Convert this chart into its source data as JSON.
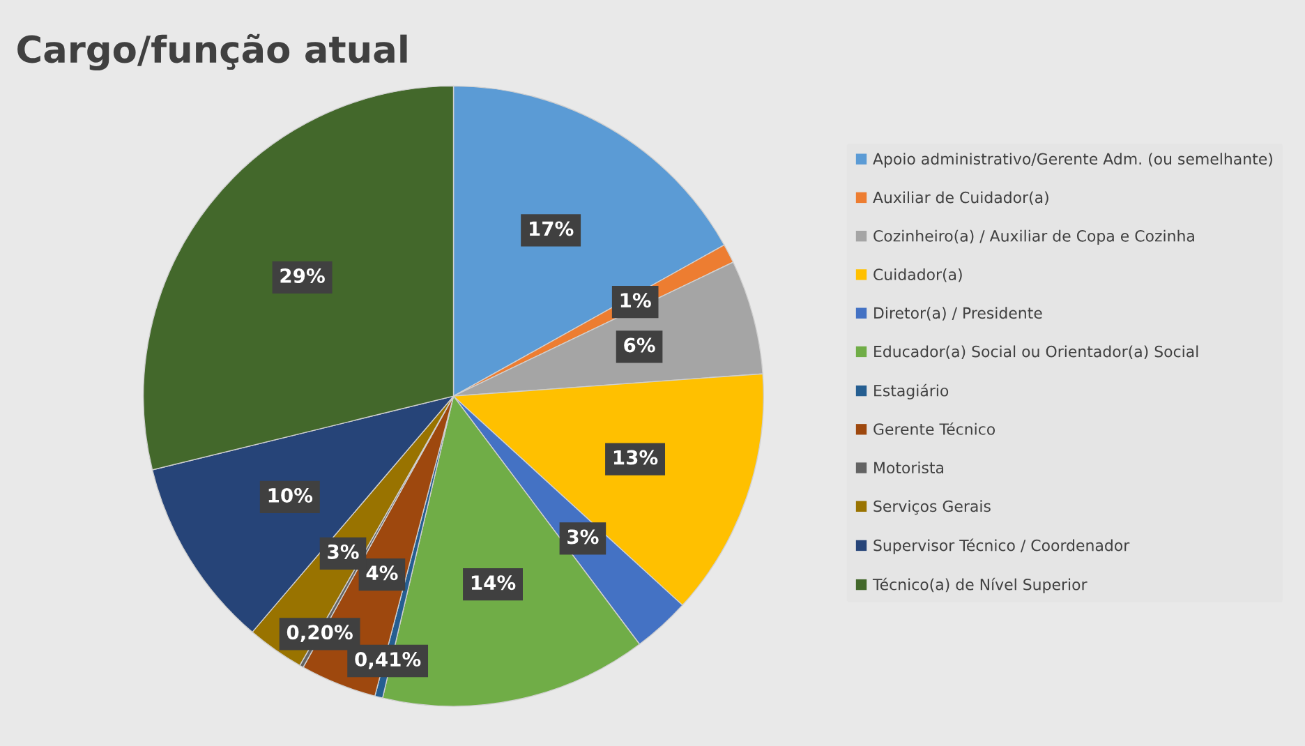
{
  "chart_data": {
    "type": "pie",
    "title": "Cargo/função atual",
    "categories": [
      "Apoio administrativo/Gerente Adm. (ou semelhante)",
      "Auxiliar de Cuidador(a)",
      "Cozinheiro(a) / Auxiliar de Copa e Cozinha",
      "Cuidador(a)",
      "Diretor(a) / Presidente",
      "Educador(a) Social ou Orientador(a) Social",
      "Estagiário",
      "Gerente Técnico",
      "Motorista",
      "Serviços Gerais",
      "Supervisor Técnico / Coordenador",
      "Técnico(a) de Nível Superior"
    ],
    "values": [
      17,
      1,
      6,
      13,
      3,
      14,
      0.41,
      4,
      0.2,
      3,
      10,
      29
    ],
    "value_labels": [
      "17%",
      "1%",
      "6%",
      "13%",
      "3%",
      "14%",
      "0,41%",
      "4%",
      "0,20%",
      "3%",
      "10%",
      "29%"
    ],
    "colors": [
      "#5b9bd5",
      "#ed7d31",
      "#a5a5a5",
      "#ffc000",
      "#4472c4",
      "#70ad47",
      "#255e91",
      "#9e480e",
      "#636363",
      "#997300",
      "#264478",
      "#43682b"
    ],
    "legend": "right"
  }
}
